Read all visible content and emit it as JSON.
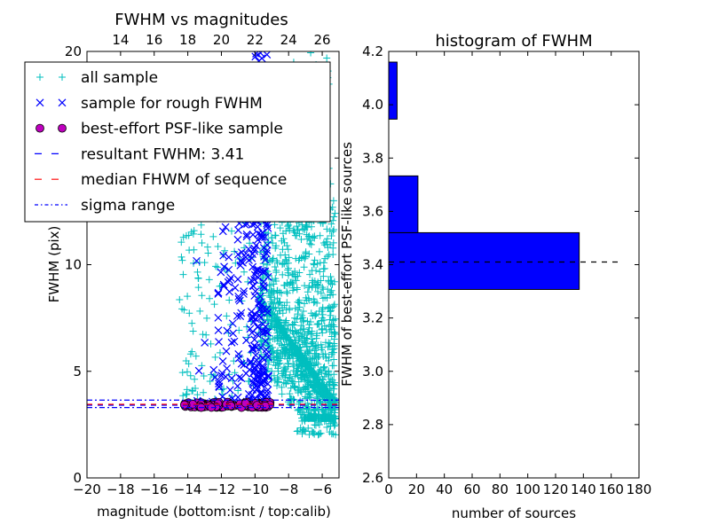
{
  "colors": {
    "all_sample": "#00bfbf",
    "rough_sample": "#0000ff",
    "psf_sample_face": "#bf00bf",
    "resultant_line": "#0000ff",
    "median_line": "#ff0000",
    "sigma_line": "#0000ff",
    "hist_bar": "#0000ff",
    "hist_ref_line": "#000000"
  },
  "chart_data": [
    {
      "type": "scatter",
      "title": "FWHM vs magnitudes",
      "xlabel": "magnitude (bottom:isnt / top:calib)",
      "ylabel": "FWHM (pix)",
      "xlim": [
        -20,
        -5
      ],
      "ylim": [
        0,
        20
      ],
      "x_ticks": [
        -20,
        -18,
        -16,
        -14,
        -12,
        -10,
        -8,
        -6
      ],
      "x_tick_labels": [
        "−20",
        "−18",
        "−16",
        "−14",
        "−12",
        "−10",
        "−8",
        "−6"
      ],
      "y_ticks": [
        0,
        5,
        10,
        15,
        20
      ],
      "y_tick_labels": [
        "0",
        "5",
        "10",
        "",
        "20"
      ],
      "top_axis": {
        "ticks": [
          14,
          16,
          18,
          20,
          22,
          24,
          26
        ],
        "labels": [
          "14",
          "16",
          "18",
          "20",
          "22",
          "24",
          "26"
        ],
        "offset": 32
      },
      "legend_position": "top-left",
      "legend": [
        {
          "label": "all sample",
          "marker": "plus"
        },
        {
          "label": "sample for rough FWHM",
          "marker": "x"
        },
        {
          "label": "best-effort PSF-like sample",
          "marker": "circle"
        },
        {
          "label": "resultant FWHM: 3.41",
          "marker": "dashed-blue"
        },
        {
          "label": "median FHWM of sequence",
          "marker": "dashed-red"
        },
        {
          "label": "sigma range",
          "marker": "dashdot-blue"
        }
      ],
      "series": [
        {
          "name": "all sample",
          "marker": "plus",
          "clusters": [
            {
              "count": 1500,
              "mag_range": [
                -9.8,
                -5.2
              ],
              "fwhm_range": [
                2.8,
                13
              ],
              "shape": "dense"
            },
            {
              "count": 120,
              "mag_range": [
                -14.5,
                -10
              ],
              "fwhm_range": [
                3.3,
                12
              ],
              "shape": "sparse"
            },
            {
              "count": 60,
              "mag_range": [
                -8,
                -5.5
              ],
              "fwhm_range": [
                13,
                20
              ],
              "shape": "tail"
            },
            {
              "count": 50,
              "mag_range": [
                -7.5,
                -5.2
              ],
              "fwhm_range": [
                2,
                3
              ],
              "shape": "low"
            }
          ]
        },
        {
          "name": "sample for rough FWHM",
          "marker": "x",
          "clusters": [
            {
              "count": 220,
              "mag_range": [
                -10.2,
                -9.2
              ],
              "fwhm_range": [
                3.5,
                20
              ],
              "shape": "column"
            },
            {
              "count": 90,
              "mag_range": [
                -12.2,
                -10.2
              ],
              "fwhm_range": [
                3.5,
                12.5
              ],
              "shape": "sparse"
            },
            {
              "count": 8,
              "mag_range": [
                -13.8,
                -12.2
              ],
              "fwhm_range": [
                3.5,
                10.5
              ],
              "shape": "sparse"
            }
          ]
        },
        {
          "name": "best-effort PSF-like sample",
          "marker": "circle",
          "clusters": [
            {
              "count": 110,
              "mag_range": [
                -14.2,
                -9.1
              ],
              "fwhm_range": [
                3.3,
                3.55
              ],
              "shape": "band"
            }
          ]
        }
      ],
      "hlines": [
        {
          "name": "resultant FWHM",
          "y": 3.41,
          "style": "dashed",
          "color_key": "resultant_line"
        },
        {
          "name": "median FWHM",
          "y": 3.45,
          "style": "dashed",
          "color_key": "median_line"
        },
        {
          "name": "sigma range upper",
          "y": 3.65,
          "style": "dashdot",
          "color_key": "sigma_line"
        },
        {
          "name": "sigma range lower",
          "y": 3.3,
          "style": "dashdot",
          "color_key": "sigma_line"
        }
      ]
    },
    {
      "type": "bar",
      "orientation": "horizontal",
      "title": "histogram of FWHM",
      "xlabel": "number of sources",
      "ylabel": "FWHM of best-effort PSF-like sources",
      "xlim": [
        0,
        180
      ],
      "ylim": [
        2.6,
        4.2
      ],
      "x_ticks": [
        0,
        20,
        40,
        60,
        80,
        100,
        120,
        140,
        160,
        180
      ],
      "y_ticks": [
        2.6,
        2.8,
        3.0,
        3.2,
        3.4,
        3.6,
        3.8,
        4.0,
        4.2
      ],
      "y_tick_labels": [
        "2.6",
        "2.8",
        "3.0",
        "3.2",
        "3.4",
        "3.6",
        "3.8",
        "4.0",
        "4.2"
      ],
      "bins": [
        {
          "y0": 3.307,
          "y1": 3.52,
          "count": 137
        },
        {
          "y0": 3.52,
          "y1": 3.733,
          "count": 21
        },
        {
          "y0": 3.733,
          "y1": 3.946,
          "count": 0
        },
        {
          "y0": 3.946,
          "y1": 4.16,
          "count": 6
        }
      ],
      "ref_line": {
        "y": 3.41,
        "x_range": [
          0,
          165
        ],
        "style": "dashed"
      }
    }
  ]
}
